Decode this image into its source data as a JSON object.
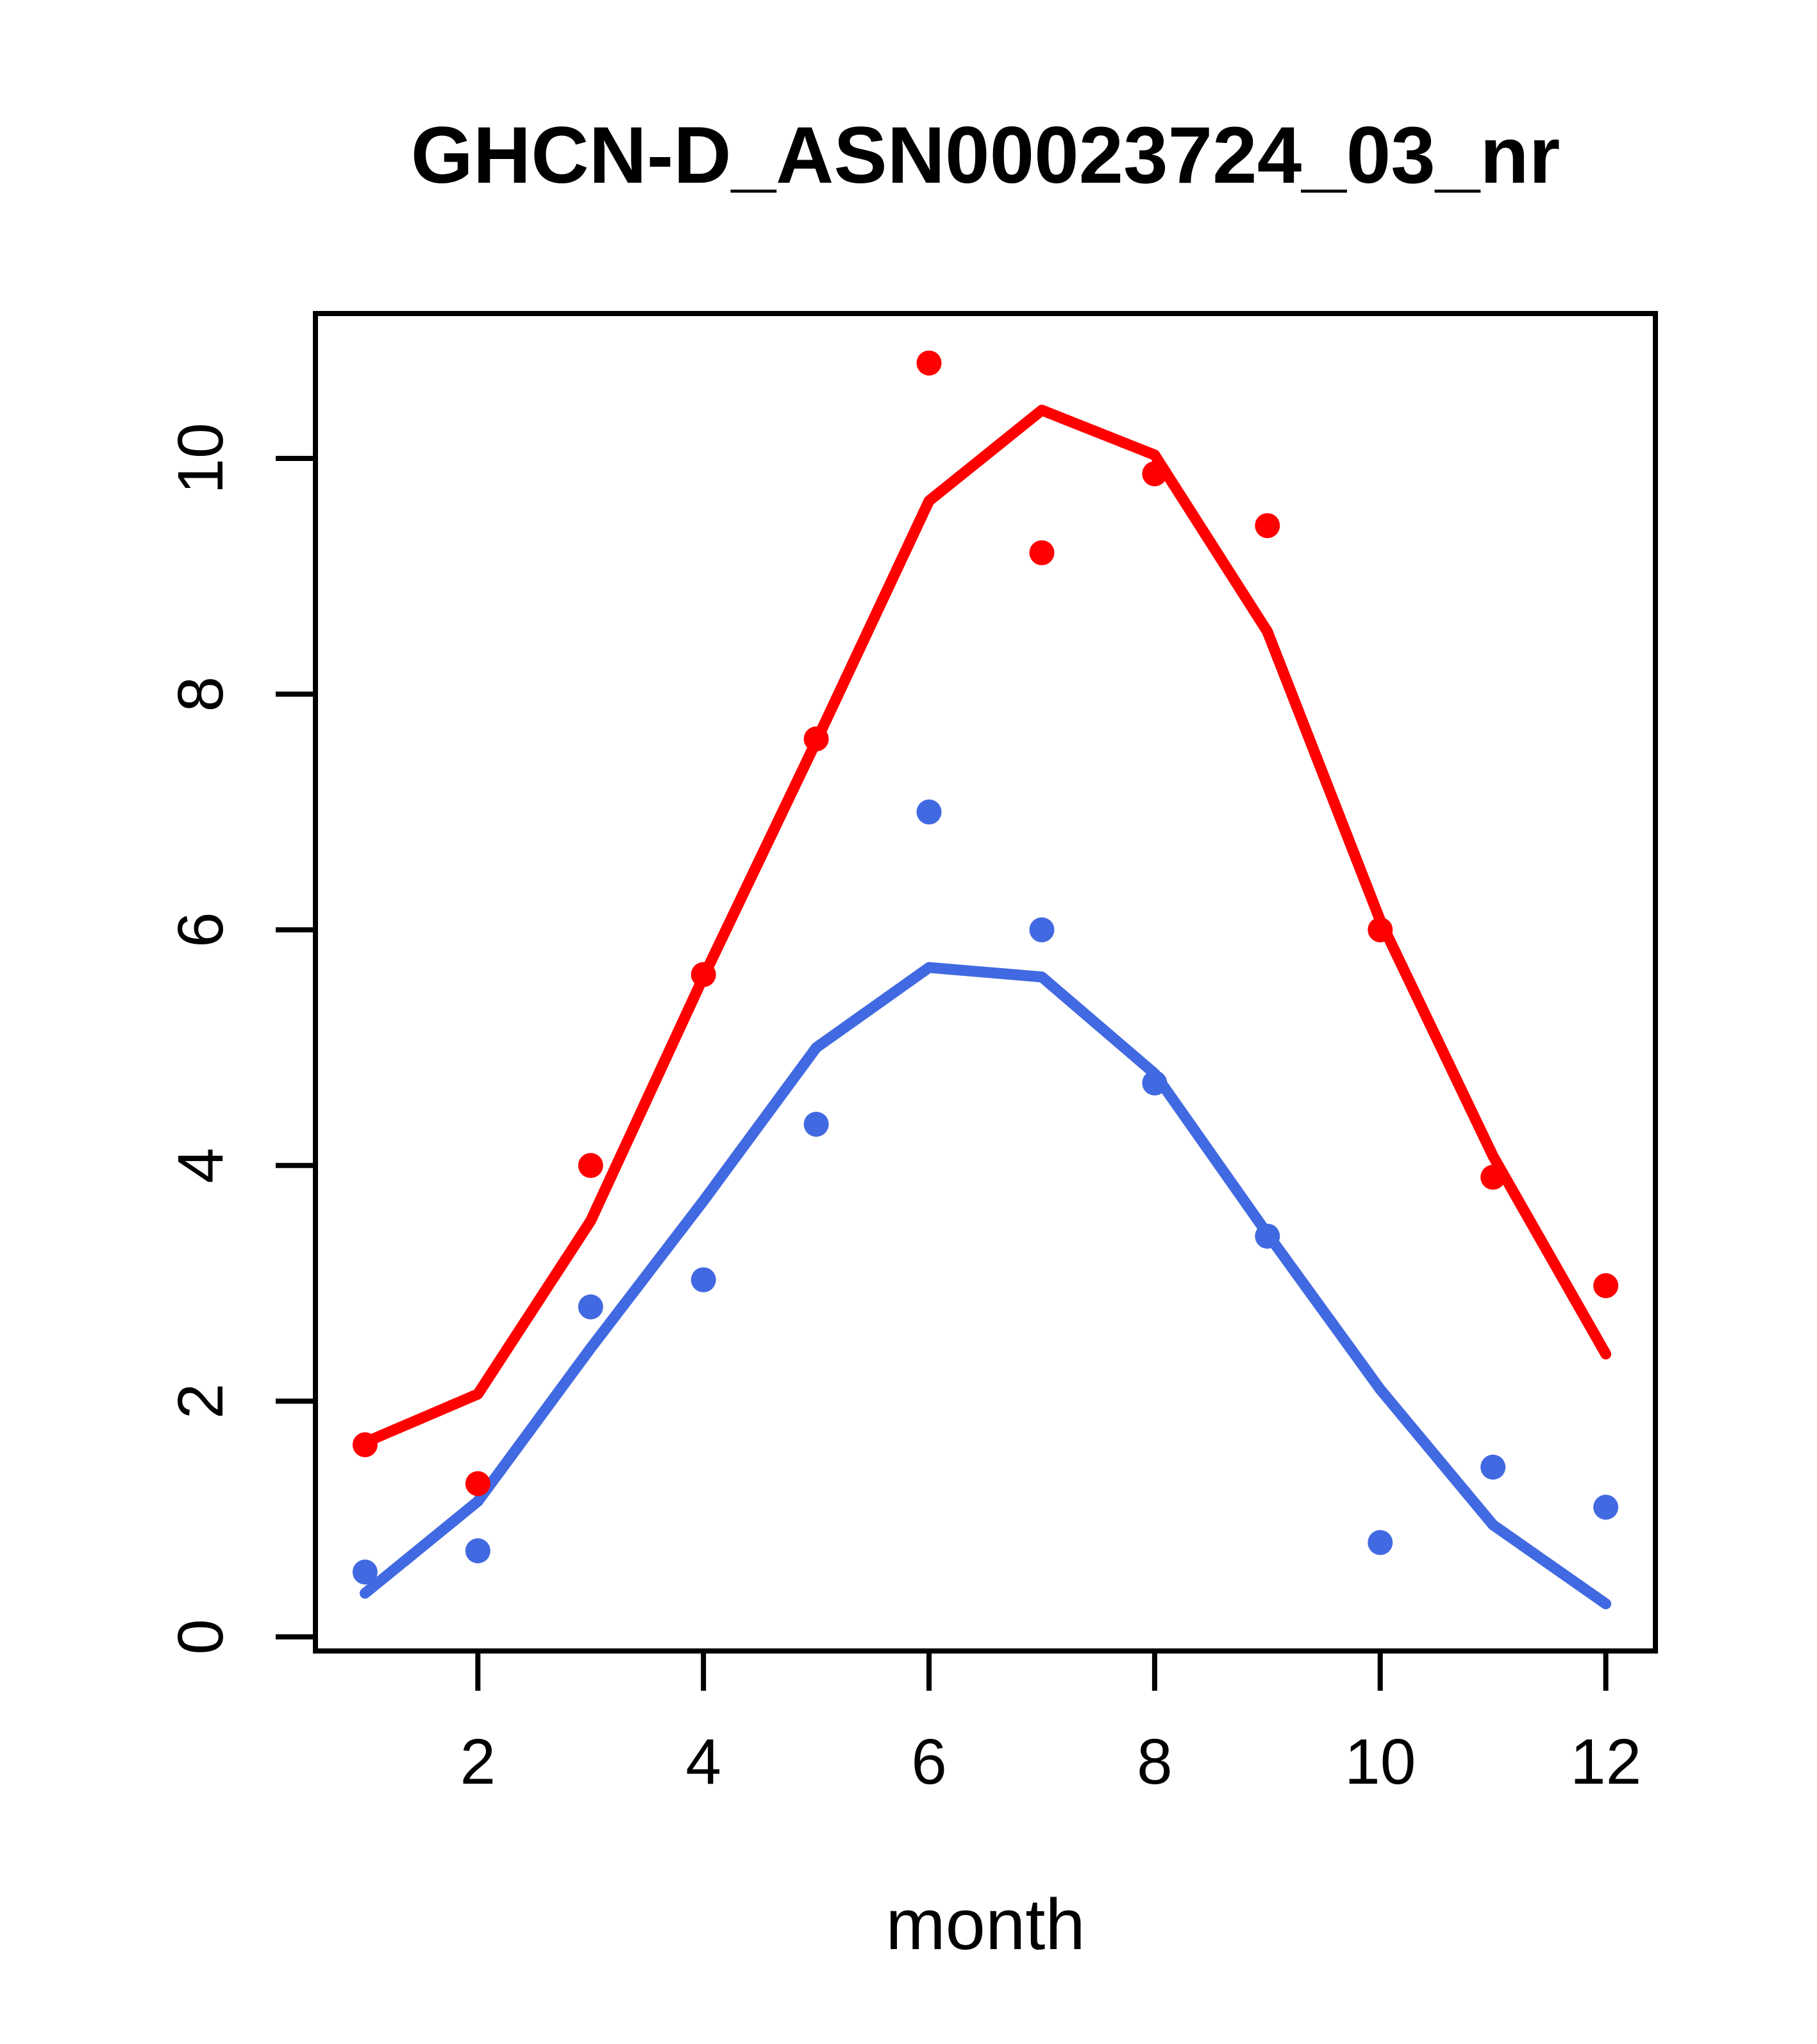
{
  "figure": {
    "background": "#ffffff",
    "axis_color": "#000000"
  },
  "chart_data": {
    "type": "scatter",
    "title": "GHCN-D_ASN00023724_03_nr",
    "xlabel": "month",
    "ylabel": "",
    "grid": false,
    "legend": "none",
    "xlim": [
      0.56,
      12.44
    ],
    "ylim": [
      -0.12,
      11.23
    ],
    "x_ticks": [
      2,
      4,
      6,
      8,
      10,
      12
    ],
    "x_tick_labels": [
      "2",
      "4",
      "6",
      "8",
      "10",
      "12"
    ],
    "y_ticks": [
      0,
      2,
      4,
      6,
      8,
      10
    ],
    "y_tick_labels": [
      "0",
      "2",
      "4",
      "6",
      "8",
      "10"
    ],
    "x": [
      1,
      2,
      3,
      4,
      5,
      6,
      7,
      8,
      9,
      10,
      11,
      12
    ],
    "series": [
      {
        "name": "red-fit-line",
        "type": "line",
        "color": "#FF0000",
        "values": [
          1.65,
          2.06,
          3.53,
          5.6,
          7.6,
          9.64,
          10.41,
          10.03,
          8.53,
          6.08,
          4.08,
          2.4
        ]
      },
      {
        "name": "blue-fit-line",
        "type": "line",
        "color": "#4169E1",
        "values": [
          0.37,
          1.15,
          2.45,
          3.7,
          5.0,
          5.68,
          5.6,
          4.78,
          3.42,
          2.1,
          0.95,
          0.28
        ]
      },
      {
        "name": "red-points",
        "type": "scatter",
        "color": "#FF0000",
        "values": [
          1.63,
          1.3,
          4.0,
          5.62,
          7.62,
          10.81,
          9.2,
          9.87,
          9.43,
          6.0,
          3.9,
          2.98
        ]
      },
      {
        "name": "blue-points",
        "type": "scatter",
        "color": "#4169E1",
        "values": [
          0.55,
          0.73,
          2.8,
          3.03,
          4.35,
          7.0,
          6.0,
          4.7,
          3.4,
          0.8,
          1.44,
          1.1
        ]
      }
    ]
  }
}
